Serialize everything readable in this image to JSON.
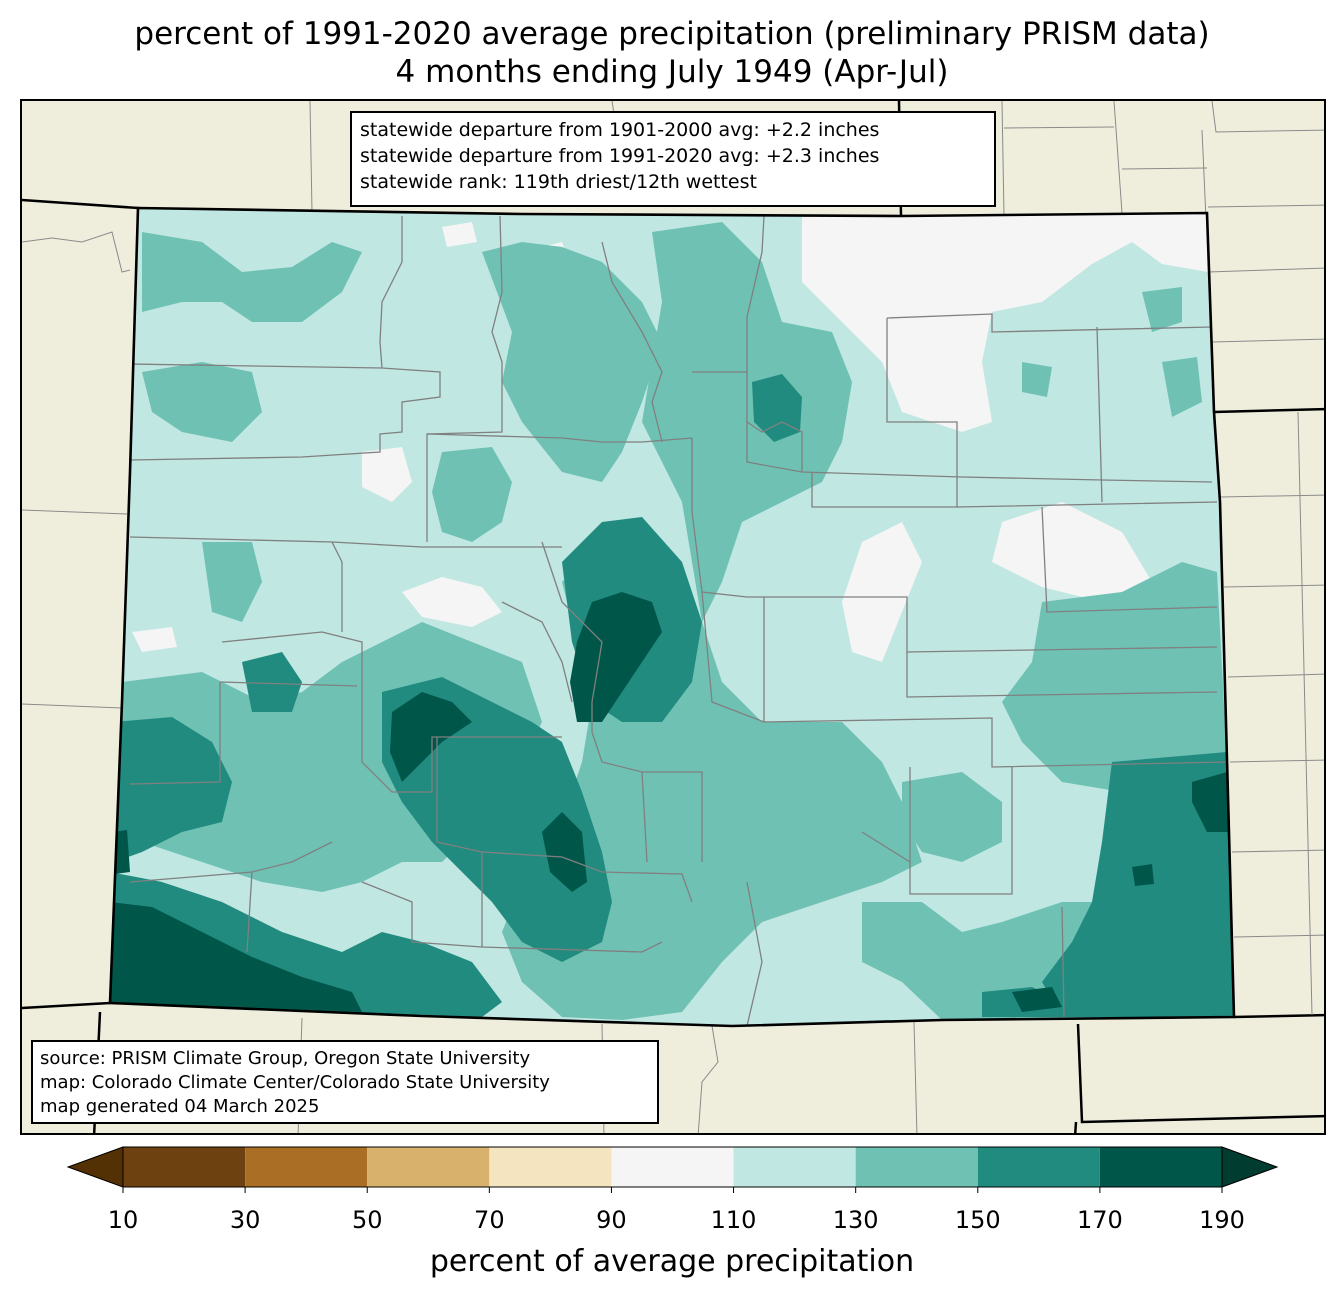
{
  "title": {
    "line1": "percent of 1991-2020 average precipitation (preliminary PRISM data)",
    "line2": "4 months ending July 1949 (Apr-Jul)"
  },
  "stats": {
    "line1": "statewide departure from 1901-2000 avg: +2.2 inches",
    "line2": "statewide departure from 1991-2020 avg: +2.3 inches",
    "line3": "statewide rank: 119th driest/12th wettest"
  },
  "source": {
    "line1": "source: PRISM Climate Group, Oregon State University",
    "line2": "map: Colorado Climate Center/Colorado State University",
    "line3": "map generated 04 March 2025"
  },
  "colorbar": {
    "label": "percent of average precipitation",
    "ticks": [
      "10",
      "30",
      "50",
      "70",
      "90",
      "110",
      "130",
      "150",
      "170",
      "190"
    ],
    "bins": [
      {
        "range": "10-30",
        "color": "#6e4210"
      },
      {
        "range": "30-50",
        "color": "#aa6e25"
      },
      {
        "range": "50-70",
        "color": "#d8b26d"
      },
      {
        "range": "70-90",
        "color": "#f4e4bf"
      },
      {
        "range": "90-110",
        "color": "#f4f5f4"
      },
      {
        "range": "110-130",
        "color": "#c0e7e2"
      },
      {
        "range": "130-150",
        "color": "#6fc1b4"
      },
      {
        "range": "150-170",
        "color": "#218b80"
      },
      {
        "range": "170-190",
        "color": "#01564a"
      }
    ],
    "under_color": "#543005",
    "over_color": "#003c30"
  },
  "colors": {
    "land": "#efeedd",
    "county_lines": "#808080",
    "state_border": "#000000"
  }
}
